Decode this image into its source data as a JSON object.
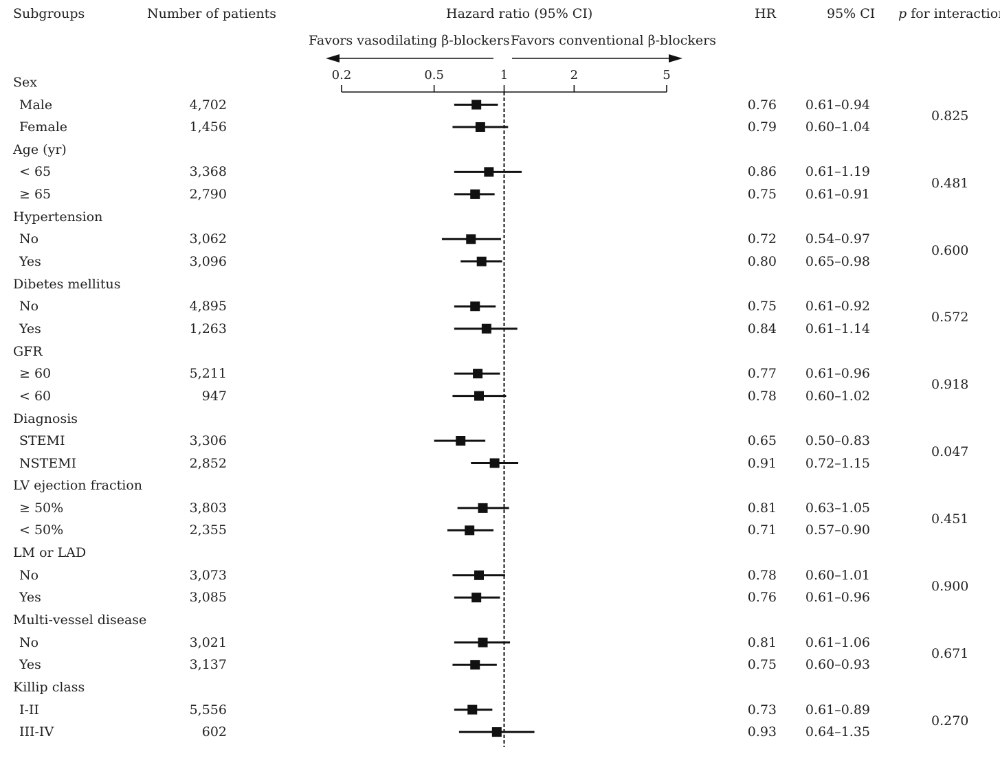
{
  "headers": {
    "subgroups": "Subgroups",
    "patients": "Number of patients",
    "hazard": "Hazard ratio (95% CI)",
    "hr": "HR",
    "ci": "95% CI",
    "p_italic": "p",
    "p_rest": " for interaction"
  },
  "favors": {
    "left": "Favors vasodilating β-blockers",
    "right": "Favors conventional β-blockers"
  },
  "chart_data": {
    "type": "forest",
    "x_scale": "log",
    "xlim": [
      0.2,
      5
    ],
    "ticks": [
      "0.2",
      "0.5",
      "1",
      "2",
      "5"
    ],
    "reference_line": 1,
    "groups": [
      {
        "name": "Sex",
        "p": "0.825",
        "rows": [
          {
            "label": "Male",
            "n": "4,702",
            "hr": "0.76",
            "ci": "0.61–0.94",
            "est": 0.76,
            "lo": 0.61,
            "hi": 0.94
          },
          {
            "label": "Female",
            "n": "1,456",
            "hr": "0.79",
            "ci": "0.60–1.04",
            "est": 0.79,
            "lo": 0.6,
            "hi": 1.04
          }
        ]
      },
      {
        "name": "Age (yr)",
        "p": "0.481",
        "rows": [
          {
            "label": "< 65",
            "n": "3,368",
            "hr": "0.86",
            "ci": "0.61–1.19",
            "est": 0.86,
            "lo": 0.61,
            "hi": 1.19
          },
          {
            "label": "≥ 65",
            "n": "2,790",
            "hr": "0.75",
            "ci": "0.61–0.91",
            "est": 0.75,
            "lo": 0.61,
            "hi": 0.91
          }
        ]
      },
      {
        "name": "Hypertension",
        "p": "0.600",
        "rows": [
          {
            "label": "No",
            "n": "3,062",
            "hr": "0.72",
            "ci": "0.54–0.97",
            "est": 0.72,
            "lo": 0.54,
            "hi": 0.97
          },
          {
            "label": "Yes",
            "n": "3,096",
            "hr": "0.80",
            "ci": "0.65–0.98",
            "est": 0.8,
            "lo": 0.65,
            "hi": 0.98
          }
        ]
      },
      {
        "name": "Dibetes mellitus",
        "p": "0.572",
        "rows": [
          {
            "label": "No",
            "n": "4,895",
            "hr": "0.75",
            "ci": "0.61–0.92",
            "est": 0.75,
            "lo": 0.61,
            "hi": 0.92
          },
          {
            "label": "Yes",
            "n": "1,263",
            "hr": "0.84",
            "ci": "0.61–1.14",
            "est": 0.84,
            "lo": 0.61,
            "hi": 1.14
          }
        ]
      },
      {
        "name": "GFR",
        "p": "0.918",
        "rows": [
          {
            "label": "≥ 60",
            "n": "5,211",
            "hr": "0.77",
            "ci": "0.61–0.96",
            "est": 0.77,
            "lo": 0.61,
            "hi": 0.96
          },
          {
            "label": "< 60",
            "n": "947",
            "hr": "0.78",
            "ci": "0.60–1.02",
            "est": 0.78,
            "lo": 0.6,
            "hi": 1.02
          }
        ]
      },
      {
        "name": "Diagnosis",
        "p": "0.047",
        "rows": [
          {
            "label": "STEMI",
            "n": "3,306",
            "hr": "0.65",
            "ci": "0.50–0.83",
            "est": 0.65,
            "lo": 0.5,
            "hi": 0.83
          },
          {
            "label": "NSTEMI",
            "n": "2,852",
            "hr": "0.91",
            "ci": "0.72–1.15",
            "est": 0.91,
            "lo": 0.72,
            "hi": 1.15
          }
        ]
      },
      {
        "name": "LV ejection fraction",
        "p": "0.451",
        "rows": [
          {
            "label": "≥ 50%",
            "n": "3,803",
            "hr": "0.81",
            "ci": "0.63–1.05",
            "est": 0.81,
            "lo": 0.63,
            "hi": 1.05
          },
          {
            "label": "< 50%",
            "n": "2,355",
            "hr": "0.71",
            "ci": "0.57–0.90",
            "est": 0.71,
            "lo": 0.57,
            "hi": 0.9
          }
        ]
      },
      {
        "name": "LM or LAD",
        "p": "0.900",
        "rows": [
          {
            "label": "No",
            "n": "3,073",
            "hr": "0.78",
            "ci": "0.60–1.01",
            "est": 0.78,
            "lo": 0.6,
            "hi": 1.01
          },
          {
            "label": "Yes",
            "n": "3,085",
            "hr": "0.76",
            "ci": "0.61–0.96",
            "est": 0.76,
            "lo": 0.61,
            "hi": 0.96
          }
        ]
      },
      {
        "name": "Multi-vessel disease",
        "p": "0.671",
        "rows": [
          {
            "label": "No",
            "n": "3,021",
            "hr": "0.81",
            "ci": "0.61–1.06",
            "est": 0.81,
            "lo": 0.61,
            "hi": 1.06
          },
          {
            "label": "Yes",
            "n": "3,137",
            "hr": "0.75",
            "ci": "0.60–0.93",
            "est": 0.75,
            "lo": 0.6,
            "hi": 0.93
          }
        ]
      },
      {
        "name": "Killip class",
        "p": "0.270",
        "rows": [
          {
            "label": "I-II",
            "n": "5,556",
            "hr": "0.73",
            "ci": "0.61–0.89",
            "est": 0.73,
            "lo": 0.61,
            "hi": 0.89
          },
          {
            "label": "III-IV",
            "n": "602",
            "hr": "0.93",
            "ci": "0.64–1.35",
            "est": 0.93,
            "lo": 0.64,
            "hi": 1.35
          }
        ]
      }
    ]
  }
}
